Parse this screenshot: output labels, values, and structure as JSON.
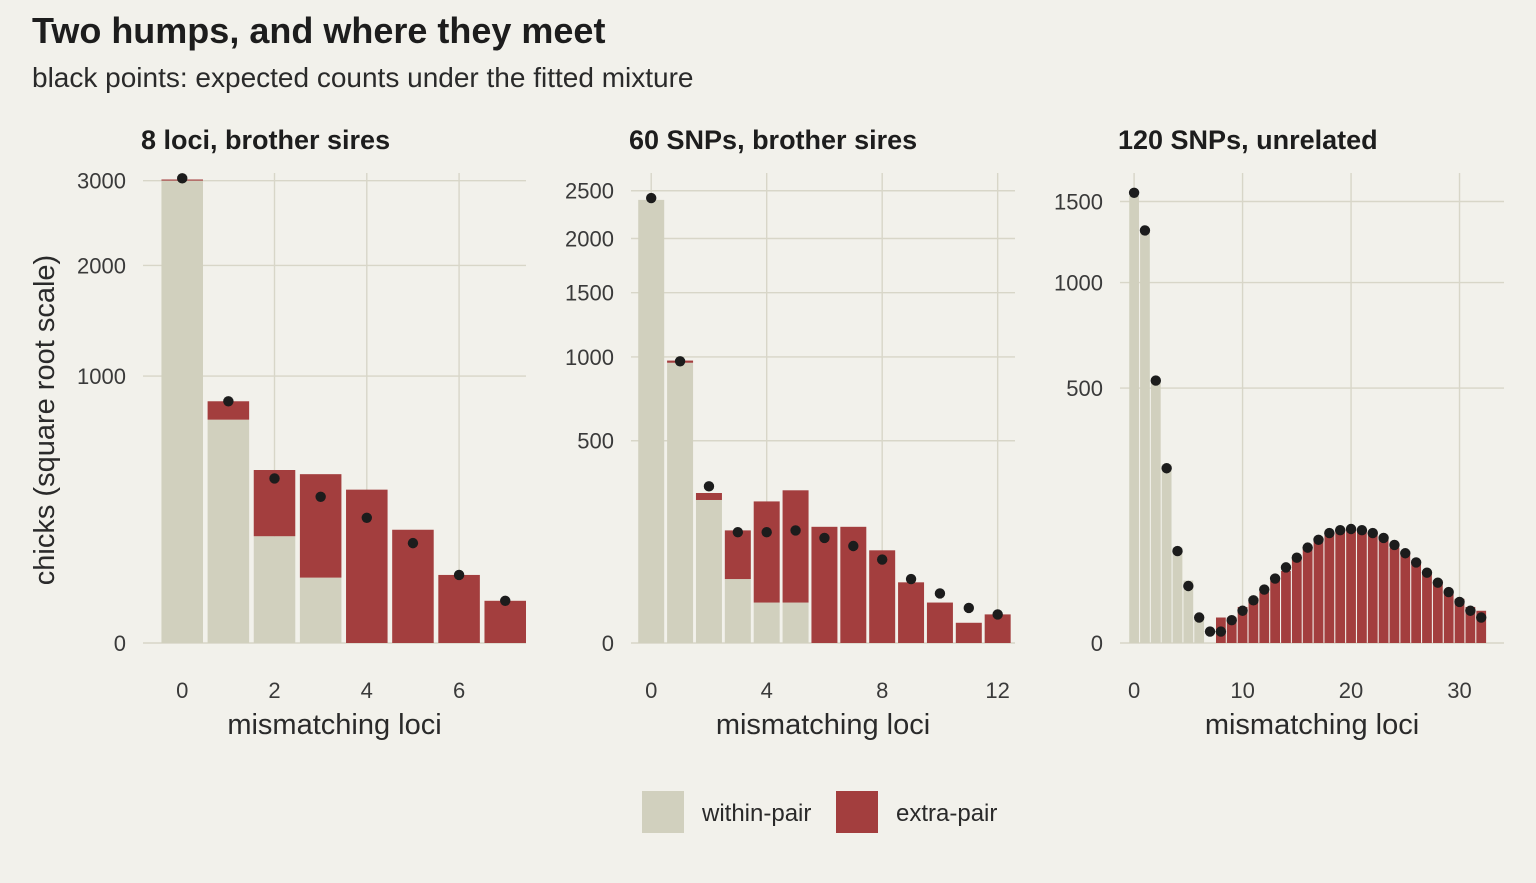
{
  "title": "Two humps, and where they meet",
  "subtitle": "black points: expected counts under the fitted mixture",
  "colors": {
    "background": "#f2f1eb",
    "grid": "#d8d6c8",
    "within_pair": "#d1d0be",
    "extra_pair": "#a33e3e",
    "expected_point": "#1c1c1c"
  },
  "legend": {
    "placement": "bottom",
    "items": [
      {
        "key": "within",
        "label": "within-pair"
      },
      {
        "key": "extra",
        "label": "extra-pair"
      }
    ]
  },
  "chart_data": [
    {
      "type": "bar",
      "stacked": true,
      "title": "8 loci, brother sires",
      "xlabel": "mismatching loci",
      "ylabel": "chicks (square root scale)",
      "y_scale": "sqrt",
      "xlim": [
        -0.85,
        7.45
      ],
      "ylim": [
        0,
        3100
      ],
      "x_ticks": [
        0,
        2,
        4,
        6
      ],
      "y_ticks": [
        0,
        1000,
        2000,
        3000
      ],
      "grid": true,
      "x": [
        0,
        1,
        2,
        3,
        4,
        5,
        6,
        7
      ],
      "series": [
        {
          "name": "within-pair",
          "key": "within",
          "values": [
            3000,
            700,
            160,
            60,
            0,
            0,
            0,
            0
          ]
        },
        {
          "name": "extra-pair",
          "key": "extra",
          "values": [
            15,
            120,
            260,
            340,
            330,
            180,
            65,
            25
          ]
        }
      ],
      "expected": [
        3030,
        820,
        380,
        300,
        220,
        140,
        65,
        25
      ]
    },
    {
      "type": "bar",
      "stacked": true,
      "title": "60 SNPs, brother sires",
      "xlabel": "",
      "ylabel": "",
      "y_scale": "sqrt",
      "xlim": [
        -0.7,
        12.6
      ],
      "ylim": [
        0,
        2700
      ],
      "x_ticks": [
        0,
        4,
        8,
        12
      ],
      "y_ticks": [
        0,
        500,
        1000,
        1500,
        2000,
        2500
      ],
      "grid": true,
      "x": [
        0,
        1,
        2,
        3,
        4,
        5,
        6,
        7,
        8,
        9,
        10,
        11,
        12
      ],
      "series": [
        {
          "name": "within-pair",
          "key": "within",
          "values": [
            2400,
            960,
            250,
            50,
            20,
            20,
            0,
            0,
            0,
            0,
            0,
            0,
            0
          ]
        },
        {
          "name": "extra-pair",
          "key": "extra",
          "values": [
            0,
            15,
            25,
            105,
            225,
            265,
            165,
            165,
            105,
            45,
            20,
            5,
            10
          ]
        }
      ],
      "expected": [
        2420,
        970,
        300,
        150,
        150,
        155,
        135,
        115,
        85,
        50,
        30,
        15,
        10
      ]
    },
    {
      "type": "bar",
      "stacked": true,
      "title": "120 SNPs, unrelated",
      "xlabel": "",
      "ylabel": "",
      "y_scale": "sqrt",
      "xlim": [
        -1.3,
        34.1
      ],
      "ylim": [
        0,
        1700
      ],
      "x_ticks": [
        0,
        10,
        20,
        30
      ],
      "y_ticks": [
        0,
        500,
        1000,
        1500
      ],
      "grid": true,
      "x": [
        0,
        1,
        2,
        3,
        4,
        5,
        6,
        7,
        8,
        9,
        10,
        11,
        12,
        13,
        14,
        15,
        16,
        17,
        18,
        19,
        20,
        21,
        22,
        23,
        24,
        25,
        26,
        27,
        28,
        29,
        30,
        31,
        32
      ],
      "series": [
        {
          "name": "within-pair",
          "key": "within",
          "values": [
            1540,
            1310,
            520,
            245,
            70,
            30,
            5,
            0,
            0,
            0,
            0,
            0,
            0,
            0,
            0,
            0,
            0,
            0,
            0,
            0,
            0,
            0,
            0,
            0,
            0,
            0,
            0,
            0,
            0,
            0,
            0,
            0,
            0
          ]
        },
        {
          "name": "extra-pair",
          "key": "extra",
          "values": [
            0,
            0,
            0,
            0,
            0,
            0,
            0,
            0,
            5,
            5,
            10,
            15,
            20,
            30,
            40,
            55,
            70,
            85,
            95,
            100,
            100,
            100,
            95,
            85,
            70,
            60,
            50,
            40,
            30,
            20,
            15,
            10,
            8
          ]
        }
      ],
      "expected": [
        1560,
        1310,
        530,
        235,
        65,
        25,
        5,
        1,
        1,
        4,
        8,
        14,
        22,
        32,
        44,
        56,
        70,
        82,
        93,
        98,
        100,
        98,
        93,
        85,
        74,
        62,
        50,
        38,
        28,
        20,
        13,
        8,
        5
      ]
    }
  ]
}
